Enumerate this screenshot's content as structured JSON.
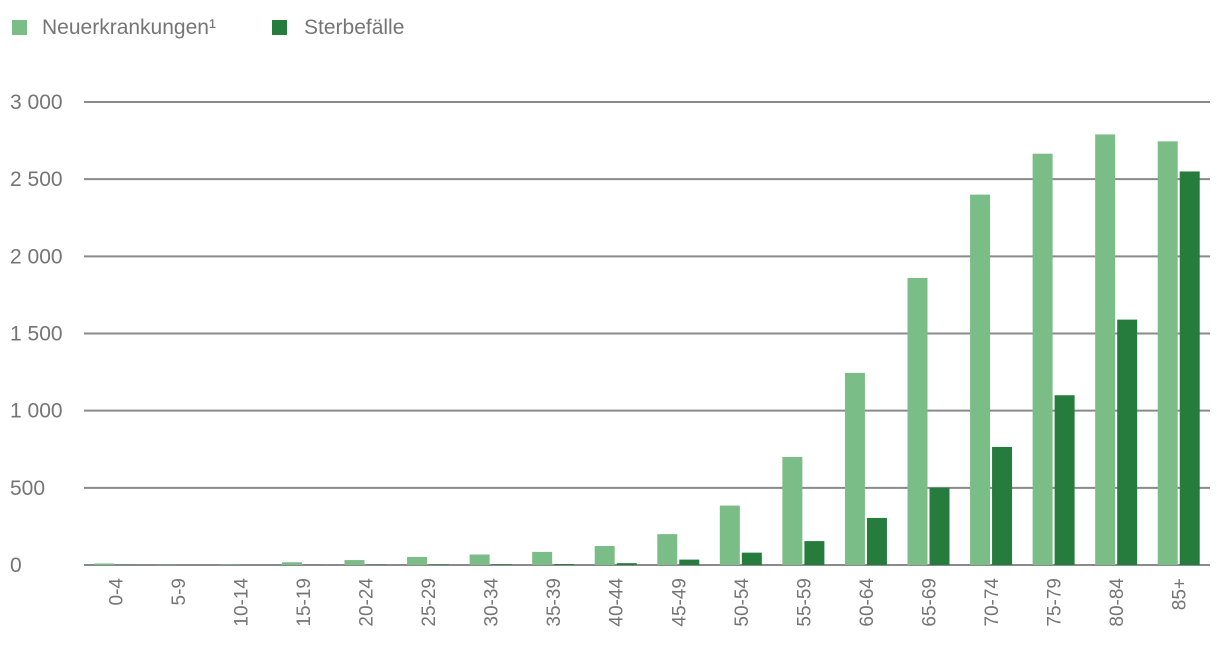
{
  "chart_data": {
    "type": "bar",
    "title": "",
    "xlabel": "",
    "ylabel": "",
    "categories": [
      "0-4",
      "5-9",
      "10-14",
      "15-19",
      "20-24",
      "25-29",
      "30-34",
      "35-39",
      "40-44",
      "45-49",
      "50-54",
      "55-59",
      "60-64",
      "65-69",
      "70-74",
      "75-79",
      "80-84",
      "85+"
    ],
    "series": [
      {
        "name": "Neuerkrankungen¹",
        "color": "#7bbd87",
        "values": [
          10,
          2,
          3,
          18,
          32,
          52,
          68,
          85,
          123,
          200,
          385,
          700,
          1245,
          1860,
          2400,
          2665,
          2790,
          2745
        ]
      },
      {
        "name": "Sterbefälle",
        "color": "#267c3c",
        "values": [
          1,
          0,
          0,
          1,
          2,
          3,
          4,
          6,
          12,
          35,
          80,
          155,
          305,
          500,
          765,
          1100,
          1590,
          2550
        ]
      }
    ],
    "ylim": [
      0,
      3000
    ],
    "yticks": [
      0,
      500,
      1000,
      1500,
      2000,
      2500,
      3000
    ],
    "ytick_labels": [
      "0",
      "500",
      "1 000",
      "1 500",
      "2 000",
      "2 500",
      "3 000"
    ],
    "grid": true,
    "legend": "top-left"
  }
}
